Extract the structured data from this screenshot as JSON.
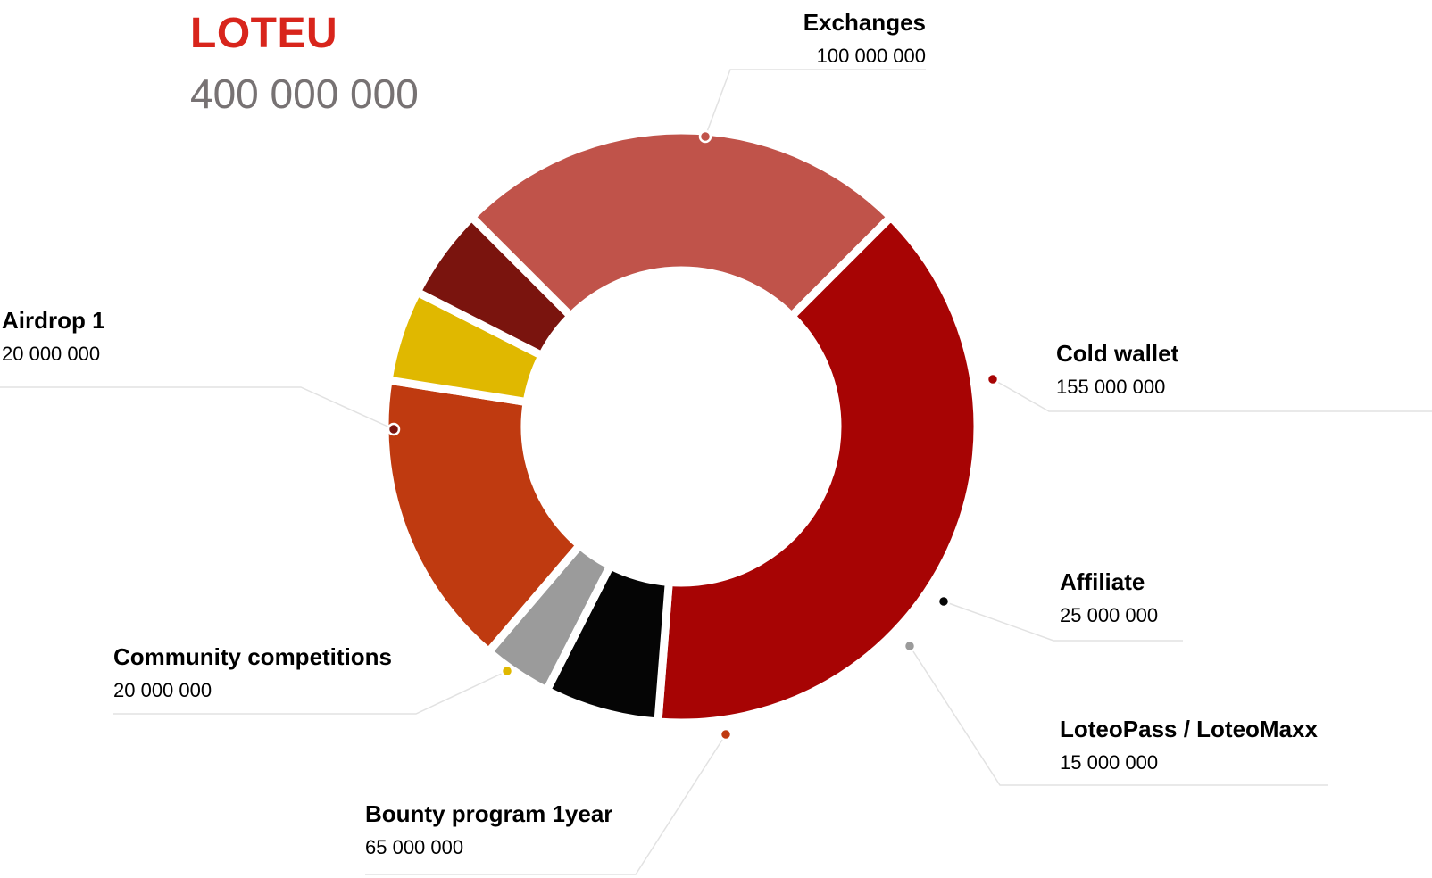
{
  "header": {
    "token": "LOTEU",
    "total": "400 000 000"
  },
  "chart_data": {
    "type": "pie",
    "variant": "donut",
    "title": "LOTEU",
    "total": 400000000,
    "slices": [
      {
        "label": "Exchanges",
        "value": 100000000,
        "value_text": "100 000 000",
        "color": "#c0534a"
      },
      {
        "label": "Cold wallet",
        "value": 155000000,
        "value_text": "155 000 000",
        "color": "#a70404"
      },
      {
        "label": "Affiliate",
        "value": 25000000,
        "value_text": "25 000 000",
        "color": "#050505"
      },
      {
        "label": "LoteoPass / LoteoMaxx",
        "value": 15000000,
        "value_text": "15 000 000",
        "color": "#9b9b9b"
      },
      {
        "label": "Bounty program 1year",
        "value": 65000000,
        "value_text": "65 000 000",
        "color": "#bf3a10"
      },
      {
        "label": "Community competitions",
        "value": 20000000,
        "value_text": "20 000 000",
        "color": "#e0b800"
      },
      {
        "label": "Airdrop 1",
        "value": 20000000,
        "value_text": "20 000 000",
        "color": "#7a140e"
      }
    ]
  }
}
